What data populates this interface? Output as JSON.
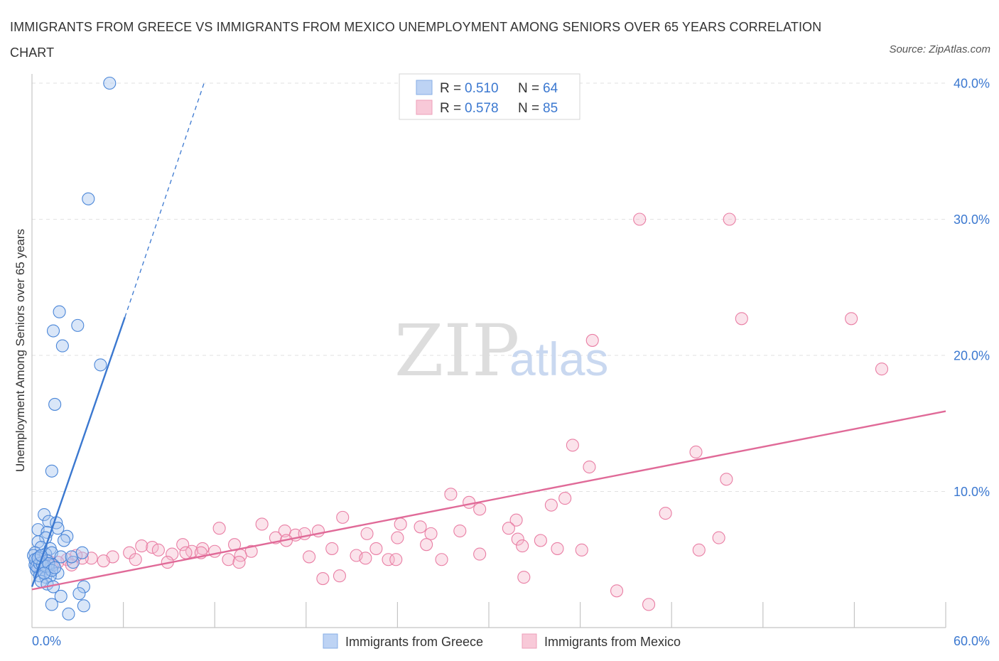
{
  "title": "IMMIGRANTS FROM GREECE VS IMMIGRANTS FROM MEXICO UNEMPLOYMENT AMONG SENIORS OVER 65 YEARS CORRELATION CHART",
  "source": "Source: ZipAtlas.com",
  "watermark": {
    "zip": "ZIP",
    "atlas": "atlas"
  },
  "legend": {
    "r_label": "R =",
    "n_label": "N =",
    "series": [
      {
        "name": "Immigrants from Greece",
        "r": "0.510",
        "n": "64"
      },
      {
        "name": "Immigrants from Mexico",
        "r": "0.578",
        "n": "85"
      }
    ]
  },
  "chart_data": {
    "type": "scatter",
    "title": "Immigrants from Greece vs Immigrants from Mexico Unemployment Among Seniors over 65 years Correlation Chart",
    "xlabel": "",
    "ylabel": "Unemployment Among Seniors over 65 years",
    "xlim": [
      0,
      60
    ],
    "ylim": [
      0,
      40
    ],
    "x_tick_labels": [
      "0.0%",
      "60.0%"
    ],
    "y_ticks": [
      10,
      20,
      30,
      40
    ],
    "y_tick_labels": [
      "10.0%",
      "20.0%",
      "30.0%",
      "40.0%"
    ],
    "grid": true,
    "colors": {
      "greece": "#3b78d0",
      "mexico": "#e06a98",
      "greece_fill": "#aac7f0",
      "mexico_fill": "#f4b8cc"
    },
    "series": [
      {
        "name": "Immigrants from Greece",
        "r": 0.51,
        "n": 64,
        "trend": {
          "x": [
            0,
            6.1
          ],
          "y": [
            3.0,
            22.8
          ],
          "dashed_to": [
            11.3,
            40.0
          ]
        },
        "points": [
          [
            5.1,
            40.0
          ],
          [
            3.7,
            31.5
          ],
          [
            1.8,
            23.2
          ],
          [
            3.0,
            22.2
          ],
          [
            1.4,
            21.8
          ],
          [
            2.0,
            20.7
          ],
          [
            4.5,
            19.3
          ],
          [
            1.5,
            16.4
          ],
          [
            1.3,
            11.5
          ],
          [
            0.8,
            8.3
          ],
          [
            1.1,
            7.8
          ],
          [
            1.6,
            7.7
          ],
          [
            0.4,
            7.2
          ],
          [
            1.0,
            7.0
          ],
          [
            1.7,
            7.3
          ],
          [
            2.3,
            6.7
          ],
          [
            0.9,
            6.6
          ],
          [
            0.4,
            6.3
          ],
          [
            2.1,
            6.4
          ],
          [
            0.6,
            5.9
          ],
          [
            1.2,
            5.8
          ],
          [
            0.2,
            5.5
          ],
          [
            0.9,
            5.4
          ],
          [
            0.5,
            5.2
          ],
          [
            1.3,
            5.5
          ],
          [
            0.3,
            4.9
          ],
          [
            0.6,
            4.8
          ],
          [
            1.0,
            4.9
          ],
          [
            0.2,
            4.6
          ],
          [
            0.8,
            4.4
          ],
          [
            1.4,
            4.6
          ],
          [
            0.4,
            4.3
          ],
          [
            0.7,
            4.1
          ],
          [
            1.1,
            4.3
          ],
          [
            0.3,
            4.2
          ],
          [
            1.7,
            4.0
          ],
          [
            2.7,
            4.8
          ],
          [
            1.9,
            5.2
          ],
          [
            2.6,
            5.2
          ],
          [
            0.5,
            3.8
          ],
          [
            0.9,
            3.7
          ],
          [
            1.2,
            3.8
          ],
          [
            0.6,
            3.4
          ],
          [
            1.0,
            3.2
          ],
          [
            1.4,
            3.0
          ],
          [
            0.1,
            5.3
          ],
          [
            0.2,
            5.0
          ],
          [
            0.3,
            4.5
          ],
          [
            0.5,
            4.7
          ],
          [
            0.7,
            4.6
          ],
          [
            0.9,
            4.5
          ],
          [
            1.1,
            4.7
          ],
          [
            0.4,
            5.1
          ],
          [
            0.6,
            5.3
          ],
          [
            1.3,
            4.2
          ],
          [
            3.4,
            3.0
          ],
          [
            3.1,
            2.5
          ],
          [
            1.9,
            2.3
          ],
          [
            1.3,
            1.7
          ],
          [
            3.4,
            1.6
          ],
          [
            2.4,
            1.0
          ],
          [
            0.8,
            4.0
          ],
          [
            1.5,
            4.4
          ],
          [
            3.3,
            5.5
          ]
        ]
      },
      {
        "name": "Immigrants from Mexico",
        "r": 0.578,
        "n": 85,
        "trend": {
          "x": [
            0,
            60
          ],
          "y": [
            2.8,
            15.9
          ]
        },
        "points": [
          [
            39.9,
            30.0
          ],
          [
            45.8,
            30.0
          ],
          [
            46.6,
            22.7
          ],
          [
            53.8,
            22.7
          ],
          [
            36.8,
            21.1
          ],
          [
            55.8,
            19.0
          ],
          [
            35.5,
            13.4
          ],
          [
            43.6,
            12.9
          ],
          [
            36.6,
            11.8
          ],
          [
            45.6,
            10.9
          ],
          [
            27.5,
            9.8
          ],
          [
            28.7,
            9.2
          ],
          [
            35.0,
            9.5
          ],
          [
            29.4,
            8.7
          ],
          [
            34.1,
            9.0
          ],
          [
            41.6,
            8.4
          ],
          [
            20.4,
            8.1
          ],
          [
            31.8,
            7.9
          ],
          [
            15.1,
            7.6
          ],
          [
            24.2,
            7.6
          ],
          [
            12.3,
            7.3
          ],
          [
            25.5,
            7.4
          ],
          [
            31.3,
            7.3
          ],
          [
            18.8,
            7.1
          ],
          [
            28.1,
            7.1
          ],
          [
            16.6,
            7.1
          ],
          [
            17.3,
            6.8
          ],
          [
            22.0,
            6.9
          ],
          [
            26.2,
            6.9
          ],
          [
            17.9,
            6.9
          ],
          [
            16.0,
            6.6
          ],
          [
            16.7,
            6.4
          ],
          [
            24.0,
            6.6
          ],
          [
            45.1,
            6.6
          ],
          [
            31.9,
            6.5
          ],
          [
            33.4,
            6.4
          ],
          [
            13.3,
            6.1
          ],
          [
            25.9,
            6.1
          ],
          [
            32.2,
            6.0
          ],
          [
            9.9,
            6.1
          ],
          [
            7.2,
            6.0
          ],
          [
            7.9,
            5.9
          ],
          [
            8.3,
            5.7
          ],
          [
            11.2,
            5.8
          ],
          [
            12.0,
            5.6
          ],
          [
            14.4,
            5.6
          ],
          [
            19.7,
            5.8
          ],
          [
            22.6,
            5.8
          ],
          [
            34.5,
            5.8
          ],
          [
            43.8,
            5.7
          ],
          [
            36.1,
            5.7
          ],
          [
            10.5,
            5.6
          ],
          [
            11.1,
            5.5
          ],
          [
            29.4,
            5.4
          ],
          [
            6.4,
            5.5
          ],
          [
            9.2,
            5.4
          ],
          [
            21.3,
            5.3
          ],
          [
            10.1,
            5.5
          ],
          [
            18.2,
            5.2
          ],
          [
            5.3,
            5.2
          ],
          [
            3.9,
            5.1
          ],
          [
            6.8,
            5.0
          ],
          [
            13.7,
            5.3
          ],
          [
            21.9,
            5.1
          ],
          [
            23.4,
            5.0
          ],
          [
            23.9,
            5.0
          ],
          [
            26.9,
            5.0
          ],
          [
            8.9,
            4.8
          ],
          [
            12.9,
            5.0
          ],
          [
            13.6,
            4.8
          ],
          [
            3.3,
            5.1
          ],
          [
            4.7,
            4.9
          ],
          [
            2.3,
            5.0
          ],
          [
            2.9,
            5.3
          ],
          [
            1.7,
            4.8
          ],
          [
            1.1,
            4.9
          ],
          [
            2.6,
            4.6
          ],
          [
            0.7,
            4.9
          ],
          [
            1.3,
            4.5
          ],
          [
            20.2,
            3.8
          ],
          [
            19.1,
            3.6
          ],
          [
            32.3,
            3.7
          ],
          [
            38.4,
            2.7
          ],
          [
            40.5,
            1.7
          ],
          [
            0.4,
            4.6
          ]
        ]
      }
    ]
  }
}
